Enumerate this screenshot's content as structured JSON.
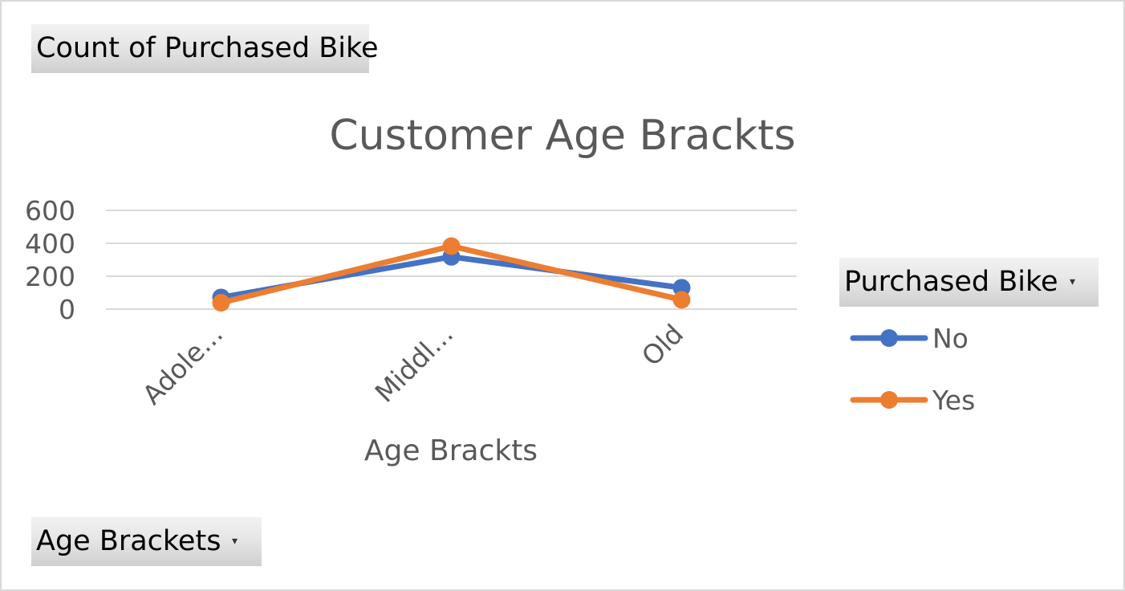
{
  "value_field_button": {
    "label": "Count of Purchased Bike"
  },
  "legend_field_button": {
    "label": "Purchased Bike",
    "arrow": "▾"
  },
  "axis_field_button": {
    "label": "Age Brackets",
    "arrow": "▾"
  },
  "chart_data": {
    "type": "line",
    "title": "Customer Age Brackts",
    "xlabel": "Age Brackts",
    "ylabel": "",
    "categories": [
      "Adole...",
      "Middl...",
      "Old"
    ],
    "y_ticks": [
      "0",
      "200",
      "400",
      "600"
    ],
    "ylim": [
      0,
      600
    ],
    "grid": true,
    "legend_position": "right",
    "series": [
      {
        "name": "No",
        "color": "#4472c4",
        "values": [
          71,
          318,
          130
        ]
      },
      {
        "name": "Yes",
        "color": "#ed7d31",
        "values": [
          39,
          383,
          57
        ]
      }
    ]
  }
}
